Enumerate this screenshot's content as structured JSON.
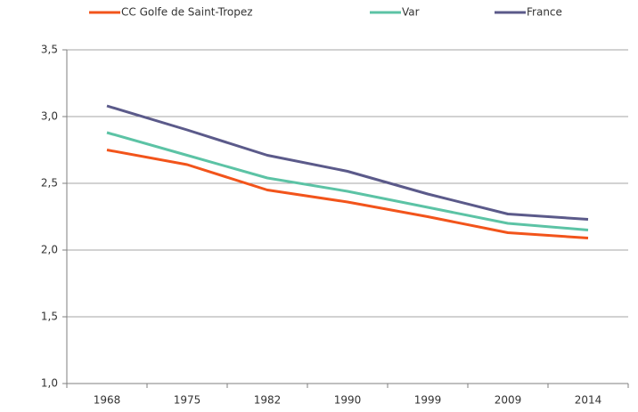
{
  "chart_data": {
    "type": "line",
    "categories": [
      "1968",
      "1975",
      "1982",
      "1990",
      "1999",
      "2009",
      "2014"
    ],
    "series": [
      {
        "name": "CC Golfe de Saint-Tropez",
        "color": "#f2541b",
        "values": [
          2.75,
          2.64,
          2.45,
          2.36,
          2.25,
          2.13,
          2.09
        ]
      },
      {
        "name": "Var",
        "color": "#5cc3a5",
        "values": [
          2.88,
          2.71,
          2.54,
          2.44,
          2.32,
          2.2,
          2.15
        ]
      },
      {
        "name": "France",
        "color": "#5b5a8a",
        "values": [
          3.08,
          2.9,
          2.71,
          2.59,
          2.42,
          2.27,
          2.23
        ]
      }
    ],
    "ylim": [
      1,
      3.5
    ],
    "yticks": [
      {
        "value": 1,
        "label": "1,0"
      },
      {
        "value": 1.5,
        "label": "1,5"
      },
      {
        "value": 2,
        "label": "2,0"
      },
      {
        "value": 2.5,
        "label": "2,5"
      },
      {
        "value": 3,
        "label": "3,0"
      },
      {
        "value": 3.5,
        "label": "3,5"
      }
    ],
    "grid": true,
    "legend": "top"
  }
}
